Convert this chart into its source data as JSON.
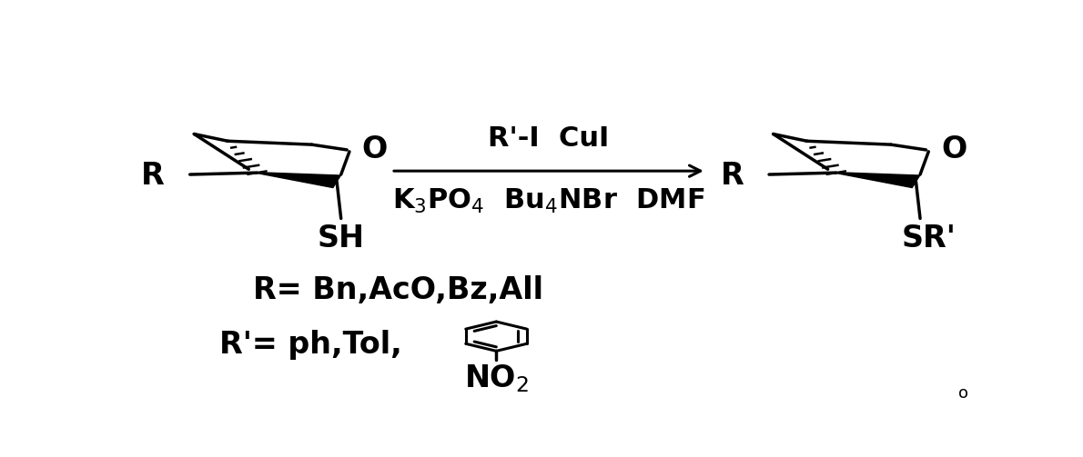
{
  "bg_color": "#ffffff",
  "text_color": "#000000",
  "line_color": "#000000",
  "figsize": [
    11.9,
    5.03
  ],
  "dpi": 100,
  "arrow_label_top": "R'-I  CuI",
  "arrow_label_bottom": "K$_3$PO$_4$  Bu$_4$NBr  DMF",
  "r_label": "R= Bn,AcO,Bz,All",
  "rprime_label": "R'= ph,Tol,",
  "font_size_main": 24,
  "font_size_small": 13
}
